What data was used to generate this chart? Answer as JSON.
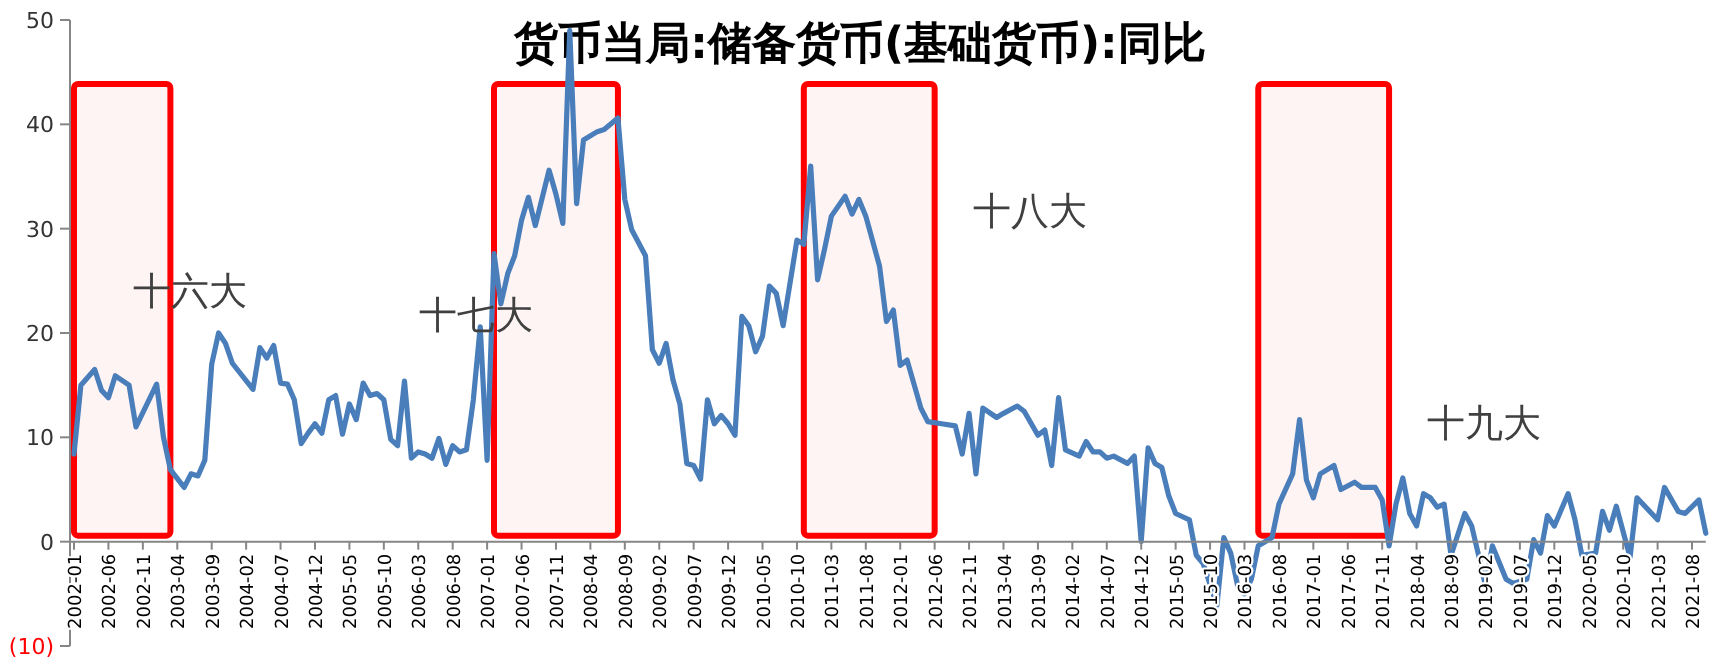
{
  "chart_data": {
    "type": "line",
    "title": "货币当局:储备货币(基础货币):同比",
    "xlim": [
      "2002-01",
      "2021-10"
    ],
    "ylim": [
      -10,
      50
    ],
    "yticks": [
      {
        "value": -10,
        "label": "(10)"
      },
      0,
      10,
      20,
      30,
      40,
      50
    ],
    "xticks": [
      "2002-01",
      "2002-06",
      "2002-11",
      "2003-04",
      "2003-09",
      "2004-02",
      "2004-07",
      "2004-12",
      "2005-05",
      "2005-10",
      "2006-03",
      "2006-08",
      "2007-01",
      "2007-06",
      "2007-11",
      "2008-04",
      "2008-09",
      "2009-02",
      "2009-07",
      "2009-12",
      "2010-05",
      "2010-10",
      "2011-03",
      "2011-08",
      "2012-01",
      "2012-06",
      "2012-11",
      "2013-04",
      "2013-09",
      "2014-02",
      "2014-07",
      "2014-12",
      "2015-05",
      "2015-10",
      "2016-03",
      "2016-08",
      "2017-01",
      "2017-06",
      "2017-11",
      "2018-04",
      "2018-09",
      "2019-02",
      "2019-07",
      "2019-12",
      "2020-05",
      "2020-10",
      "2021-03",
      "2021-08"
    ],
    "series": [
      {
        "color": "#4a7ebb",
        "x": [
          "2002-01",
          "2002-02",
          "2002-04",
          "2002-05",
          "2002-06",
          "2002-07",
          "2002-09",
          "2002-10",
          "2003-01",
          "2003-02",
          "2003-03",
          "2003-05",
          "2003-06",
          "2003-07",
          "2003-08",
          "2003-09",
          "2003-10",
          "2003-11",
          "2003-12",
          "2004-03",
          "2004-04",
          "2004-05",
          "2004-06",
          "2004-07",
          "2004-08",
          "2004-09",
          "2004-10",
          "2004-11",
          "2004-12",
          "2005-01",
          "2005-02",
          "2005-03",
          "2005-04",
          "2005-05",
          "2005-06",
          "2005-07",
          "2005-08",
          "2005-09",
          "2005-10",
          "2005-11",
          "2005-12",
          "2006-01",
          "2006-02",
          "2006-03",
          "2006-04",
          "2006-05",
          "2006-06",
          "2006-07",
          "2006-08",
          "2006-09",
          "2006-10",
          "2006-11",
          "2006-12",
          "2007-01",
          "2007-02",
          "2007-03",
          "2007-04",
          "2007-05",
          "2007-06",
          "2007-07",
          "2007-08",
          "2007-10",
          "2007-11",
          "2007-12",
          "2008-01",
          "2008-02",
          "2008-03",
          "2008-05",
          "2008-06",
          "2008-08",
          "2008-09",
          "2008-10",
          "2008-12",
          "2009-01",
          "2009-02",
          "2009-03",
          "2009-04",
          "2009-05",
          "2009-06",
          "2009-07",
          "2009-08",
          "2009-09",
          "2009-10",
          "2009-11",
          "2009-12",
          "2010-01",
          "2010-02",
          "2010-03",
          "2010-04",
          "2010-05",
          "2010-06",
          "2010-07",
          "2010-08",
          "2010-10",
          "2010-11",
          "2010-12",
          "2011-01",
          "2011-02",
          "2011-03",
          "2011-05",
          "2011-06",
          "2011-07",
          "2011-08",
          "2011-10",
          "2011-11",
          "2011-12",
          "2012-01",
          "2012-02",
          "2012-03",
          "2012-04",
          "2012-05",
          "2012-07",
          "2012-09",
          "2012-10",
          "2012-11",
          "2012-12",
          "2013-01",
          "2013-03",
          "2013-04",
          "2013-06",
          "2013-07",
          "2013-09",
          "2013-10",
          "2013-11",
          "2013-12",
          "2014-01",
          "2014-03",
          "2014-04",
          "2014-05",
          "2014-06",
          "2014-07",
          "2014-08",
          "2014-10",
          "2014-11",
          "2014-12",
          "2015-01",
          "2015-02",
          "2015-03",
          "2015-04",
          "2015-05",
          "2015-07",
          "2015-08",
          "2015-09",
          "2015-11",
          "2015-12",
          "2016-01",
          "2016-02",
          "2016-03",
          "2016-04",
          "2016-05",
          "2016-06",
          "2016-07",
          "2016-08",
          "2016-10",
          "2016-11",
          "2016-12",
          "2017-01",
          "2017-02",
          "2017-04",
          "2017-05",
          "2017-07",
          "2017-08",
          "2017-10",
          "2017-11",
          "2017-12",
          "2018-01",
          "2018-02",
          "2018-03",
          "2018-04",
          "2018-05",
          "2018-06",
          "2018-07",
          "2018-08",
          "2018-09",
          "2018-11",
          "2018-12",
          "2019-01",
          "2019-02",
          "2019-03",
          "2019-05",
          "2019-06",
          "2019-08",
          "2019-09",
          "2019-10",
          "2019-11",
          "2019-12",
          "2020-02",
          "2020-03",
          "2020-04",
          "2020-06",
          "2020-07",
          "2020-08",
          "2020-09",
          "2020-11",
          "2020-12",
          "2021-03",
          "2021-04",
          "2021-06",
          "2021-07",
          "2021-09",
          "2021-10"
        ],
        "values": [
          8.4,
          15,
          16.5,
          14.5,
          13.8,
          15.9,
          15,
          11,
          15.1,
          10,
          6.9,
          5.2,
          6.5,
          6.3,
          7.8,
          17,
          20,
          19,
          17.1,
          14.6,
          18.6,
          17.6,
          18.8,
          15.2,
          15.1,
          13.6,
          9.4,
          10.4,
          11.3,
          10.4,
          13.6,
          14,
          10.3,
          13.2,
          11.7,
          15.2,
          14,
          14.2,
          13.6,
          9.8,
          9.2,
          15.4,
          8,
          8.6,
          8.4,
          8,
          9.9,
          7.4,
          9.2,
          8.6,
          8.8,
          13.6,
          20.6,
          7.8,
          27.6,
          22.8,
          25.7,
          27.4,
          30.8,
          33,
          30.3,
          35.6,
          33.3,
          30.5,
          49,
          32.4,
          38.5,
          39.3,
          39.5,
          40.6,
          32.8,
          29.9,
          27.4,
          18.4,
          17.1,
          19,
          15.5,
          13.2,
          7.5,
          7.3,
          6,
          13.6,
          11.3,
          12.1,
          11.3,
          10.2,
          21.6,
          20.7,
          18.2,
          19.7,
          24.5,
          23.8,
          20.7,
          28.9,
          28.5,
          36,
          25.1,
          28,
          31.2,
          33.1,
          31.4,
          32.8,
          31.2,
          26.4,
          21.1,
          22.2,
          16.9,
          17.4,
          15.1,
          12.8,
          11.5,
          11.3,
          11.1,
          8.4,
          12.3,
          6.5,
          12.8,
          11.9,
          12.3,
          13,
          12.5,
          10.2,
          10.7,
          7.3,
          13.8,
          8.8,
          8.2,
          9.6,
          8.6,
          8.6,
          8,
          8.2,
          7.5,
          8.2,
          0,
          9,
          7.5,
          7.1,
          4.4,
          2.7,
          2.1,
          -1.3,
          -2.1,
          -6.1,
          0.4,
          -1.1,
          -4.2,
          -5,
          -3.6,
          -0.4,
          0,
          0.4,
          3.6,
          6.5,
          11.7,
          5.9,
          4.2,
          6.5,
          7.3,
          5,
          5.7,
          5.2,
          5.2,
          4,
          -0.4,
          3.6,
          6.1,
          2.7,
          1.5,
          4.6,
          4.2,
          3.3,
          3.6,
          -1.3,
          2.7,
          1.5,
          -1.3,
          -4.2,
          -0.4,
          -3.6,
          -4,
          -3.6,
          0.2,
          -1.1,
          2.5,
          1.5,
          4.6,
          2.1,
          -1.3,
          -1.1,
          2.9,
          1.1,
          3.4,
          -1.5,
          4.2,
          2.1,
          5.2,
          2.9,
          2.7,
          4,
          0.8
        ]
      }
    ],
    "bands": [
      {
        "axis": "x",
        "from": "2002-01",
        "to": "2003-03",
        "color": "#ff0000"
      },
      {
        "axis": "x",
        "from": "2007-02",
        "to": "2008-08",
        "color": "#ff0000"
      },
      {
        "axis": "x",
        "from": "2010-11",
        "to": "2012-06",
        "color": "#ff0000"
      },
      {
        "axis": "x",
        "from": "2016-05",
        "to": "2017-12",
        "color": "#ff0000"
      }
    ],
    "annotations": [
      "十六大",
      "十七大",
      "十八大",
      "十九大"
    ]
  }
}
